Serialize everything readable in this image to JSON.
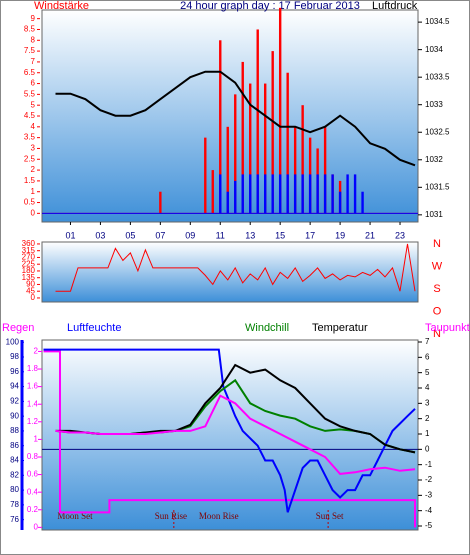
{
  "chart_data": [
    {
      "type": "bar",
      "title": "24 hour graph day : 17 Februar 2013",
      "ylabel": "Windstärke",
      "y2label": "Luftdruck",
      "xlim": [
        -0.9,
        24.2
      ],
      "xticks": [
        {
          "value": 1,
          "label": "01"
        },
        {
          "value": 3,
          "label": "03"
        },
        {
          "value": 5,
          "label": "05"
        },
        {
          "value": 7,
          "label": "07"
        },
        {
          "value": 9,
          "label": "09"
        },
        {
          "value": 11,
          "label": "11"
        },
        {
          "value": 13,
          "label": "13"
        },
        {
          "value": 15,
          "label": "15"
        },
        {
          "value": 17,
          "label": "17"
        },
        {
          "value": 19,
          "label": "19"
        },
        {
          "value": 21,
          "label": "21"
        },
        {
          "value": 23,
          "label": "23"
        }
      ],
      "ylim": [
        -0.4,
        9.4
      ],
      "yticks": [
        0,
        0.5,
        1,
        1.5,
        2,
        2.5,
        3,
        3.5,
        4,
        4.5,
        5,
        5.5,
        6,
        6.5,
        7,
        7.5,
        8,
        8.5,
        9
      ],
      "y2lim": [
        1030.87,
        1034.72
      ],
      "y2ticks": [
        1031,
        1031.5,
        1032,
        1032.5,
        1033,
        1033.5,
        1034,
        1034.5
      ],
      "x": [
        0,
        0.5,
        1,
        1.5,
        2,
        2.5,
        3,
        3.5,
        4,
        4.5,
        5,
        5.5,
        6,
        6.5,
        7,
        7.5,
        8,
        8.5,
        9,
        9.5,
        10,
        10.5,
        11,
        11.5,
        12,
        12.5,
        13,
        13.5,
        14,
        14.5,
        15,
        15.5,
        16,
        16.5,
        17,
        17.5,
        18,
        18.5,
        19,
        19.5,
        20,
        20.5,
        21,
        21.5,
        22,
        22.5,
        23,
        23.5,
        24
      ],
      "series": [
        {
          "color": "#ff0000",
          "values": [
            0,
            0,
            0,
            0,
            0,
            0,
            0,
            0,
            0,
            0,
            0,
            0,
            0,
            0,
            1,
            0,
            0,
            0,
            0,
            0,
            3.5,
            2,
            8,
            4,
            5.5,
            7,
            6,
            8.5,
            6,
            7.5,
            9.5,
            6.5,
            4,
            5,
            3.5,
            3,
            4,
            1.8,
            1.5,
            0,
            0,
            0,
            0,
            0,
            0,
            0,
            0,
            0,
            0
          ]
        },
        {
          "color": "#0000ff",
          "values": [
            0,
            0,
            0,
            0,
            0,
            0,
            0,
            0,
            0,
            0,
            0,
            0,
            0,
            0,
            0,
            0,
            0,
            0,
            0,
            0,
            0,
            0,
            1.8,
            1,
            1.5,
            1.8,
            1.8,
            1.8,
            1.8,
            1.8,
            1.8,
            1.8,
            1.8,
            1.8,
            1.8,
            1.8,
            1.8,
            1.8,
            1,
            1.8,
            1.8,
            1,
            0,
            0,
            0,
            0,
            0,
            0,
            0
          ]
        },
        {
          "type": "line",
          "axis": "y2",
          "color": "#000000",
          "x": [
            0,
            1,
            2,
            3,
            4,
            5,
            6,
            7,
            8,
            9,
            10,
            11,
            12,
            13,
            14,
            15,
            16,
            17,
            18,
            19,
            20,
            21,
            22,
            23,
            24
          ],
          "values": [
            1033.2,
            1033.2,
            1033.1,
            1032.9,
            1032.8,
            1032.8,
            1032.9,
            1033.1,
            1033.3,
            1033.5,
            1033.6,
            1033.6,
            1033.4,
            1033.0,
            1032.8,
            1032.6,
            1032.6,
            1032.5,
            1032.6,
            1032.8,
            1032.6,
            1032.3,
            1032.2,
            1032.0,
            1031.9
          ]
        }
      ]
    },
    {
      "type": "line",
      "xlim": [
        -0.9,
        24.2
      ],
      "ylim": [
        -27,
        373
      ],
      "yticks": [
        0,
        45,
        90,
        135,
        180,
        225,
        270,
        315,
        360
      ],
      "direction_labels": [
        "N",
        "W",
        "S",
        "O",
        "N"
      ],
      "series": [
        {
          "color": "#ff0000",
          "x": [
            0,
            0.5,
            1,
            1.5,
            2,
            2.5,
            3,
            3.5,
            4,
            4.5,
            5,
            5.5,
            6,
            6.5,
            7,
            7.5,
            8,
            8.5,
            9,
            9.5,
            10,
            10.5,
            11,
            11.5,
            12,
            12.5,
            13,
            13.5,
            14,
            14.5,
            15,
            15.5,
            16,
            16.5,
            17,
            17.5,
            18,
            18.5,
            19,
            19.5,
            20,
            20.5,
            21,
            21.5,
            22,
            22.5,
            23,
            23.5,
            24
          ],
          "values": [
            45,
            45,
            45,
            200,
            200,
            200,
            200,
            200,
            330,
            250,
            300,
            180,
            320,
            200,
            200,
            200,
            200,
            200,
            200,
            200,
            150,
            90,
            180,
            120,
            200,
            100,
            160,
            120,
            200,
            90,
            170,
            130,
            200,
            110,
            150,
            200,
            130,
            160,
            120,
            150,
            140,
            170,
            150,
            190,
            140,
            200,
            45,
            360,
            45
          ]
        }
      ]
    },
    {
      "type": "line",
      "xlim": [
        -0.9,
        24.2
      ],
      "ylim": [
        74.6,
        100.3
      ],
      "yticks": [
        76,
        78,
        80,
        82,
        84,
        86,
        88,
        90,
        92,
        94,
        96,
        98,
        100
      ],
      "y2lim": [
        -5.26,
        7.13
      ],
      "y2ticks": [
        -5,
        -4,
        -3,
        -2,
        -1,
        0,
        1,
        2,
        3,
        4,
        5,
        6,
        7
      ],
      "y3lim": [
        -0.03,
        2.13
      ],
      "y3ticks": [
        0,
        0.2,
        0.4,
        0.6,
        0.8,
        1,
        1.2,
        1.4,
        1.6,
        1.8,
        2
      ],
      "annotations": [
        {
          "text": "Moon Set",
          "x": 1.3
        },
        {
          "text": "Sun Rise",
          "x": 7.7,
          "line": 7.9
        },
        {
          "text": "Moon Rise",
          "x": 10.9
        },
        {
          "text": "Sun Set",
          "x": 18.3,
          "line": 18.2
        }
      ],
      "series": [
        {
          "name": "Regen",
          "axis": "y3",
          "color": "#ff00ff",
          "x": [
            -0.8,
            0.3,
            0.3,
            3.6,
            3.6,
            24,
            24
          ],
          "values": [
            2,
            2,
            0.17,
            0.17,
            0.31,
            0.31,
            0
          ]
        },
        {
          "name": "Luftfeuchte",
          "axis": "y",
          "color": "#0000ff",
          "x": [
            -0.8,
            10.9,
            11.2,
            11.6,
            12,
            12.5,
            13,
            13.5,
            14,
            14.5,
            15,
            15.3,
            15.5,
            16,
            16.5,
            17,
            17.5,
            18,
            18.5,
            19,
            19.5,
            20,
            20.5,
            21,
            21.5,
            22,
            22.5,
            23,
            23.5,
            24
          ],
          "values": [
            99,
            99,
            94,
            92,
            90,
            88,
            87,
            86,
            84,
            84,
            82,
            80,
            77,
            80,
            83,
            84,
            84,
            82,
            80,
            79,
            80,
            80,
            82,
            82,
            84,
            86,
            88,
            89,
            90,
            91
          ]
        },
        {
          "name": "Windchill",
          "axis": "y2",
          "color": "#008000",
          "x": [
            0,
            1,
            2,
            3,
            4,
            5,
            6,
            7,
            8,
            9,
            10,
            11,
            12,
            13,
            14,
            15,
            16,
            17,
            18,
            19,
            20,
            21,
            22,
            23,
            24
          ],
          "values": [
            1.2,
            1.1,
            1.1,
            1.0,
            1.0,
            1.0,
            1.1,
            1.1,
            1.2,
            1.5,
            2.8,
            3.8,
            4.5,
            3.0,
            2.5,
            2.2,
            2.0,
            1.5,
            1.2,
            1.3,
            1.2,
            1.0,
            0.3,
            0,
            -0.2
          ]
        },
        {
          "name": "Temperatur",
          "axis": "y2",
          "color": "#000000",
          "x": [
            0,
            1,
            2,
            3,
            4,
            5,
            6,
            7,
            8,
            9,
            10,
            11,
            12,
            13,
            14,
            15,
            16,
            17,
            18,
            19,
            20,
            21,
            22,
            23,
            24
          ],
          "values": [
            1.2,
            1.2,
            1.1,
            1.0,
            1.0,
            1.0,
            1.1,
            1.2,
            1.2,
            1.6,
            3.0,
            4.0,
            5.5,
            5.0,
            5.2,
            4.5,
            4.0,
            3.0,
            2.0,
            1.5,
            1.2,
            1.0,
            0.3,
            0,
            -0.2
          ]
        },
        {
          "name": "Taupunkt",
          "axis": "y2",
          "color": "#ff00ff",
          "x": [
            0,
            1,
            2,
            3,
            4,
            5,
            6,
            7,
            8,
            9,
            10,
            11,
            12,
            13,
            14,
            15,
            16,
            17,
            18,
            19,
            20,
            21,
            22,
            23,
            24
          ],
          "values": [
            1.2,
            1.1,
            1.1,
            1.0,
            1.0,
            1.0,
            1.0,
            1.1,
            1.2,
            1.2,
            1.5,
            3.5,
            3.0,
            2.0,
            1.5,
            1.0,
            0.5,
            0,
            -0.5,
            -1.6,
            -1.5,
            -1.3,
            -1.2,
            -1.4,
            -1.3
          ]
        }
      ]
    }
  ]
}
